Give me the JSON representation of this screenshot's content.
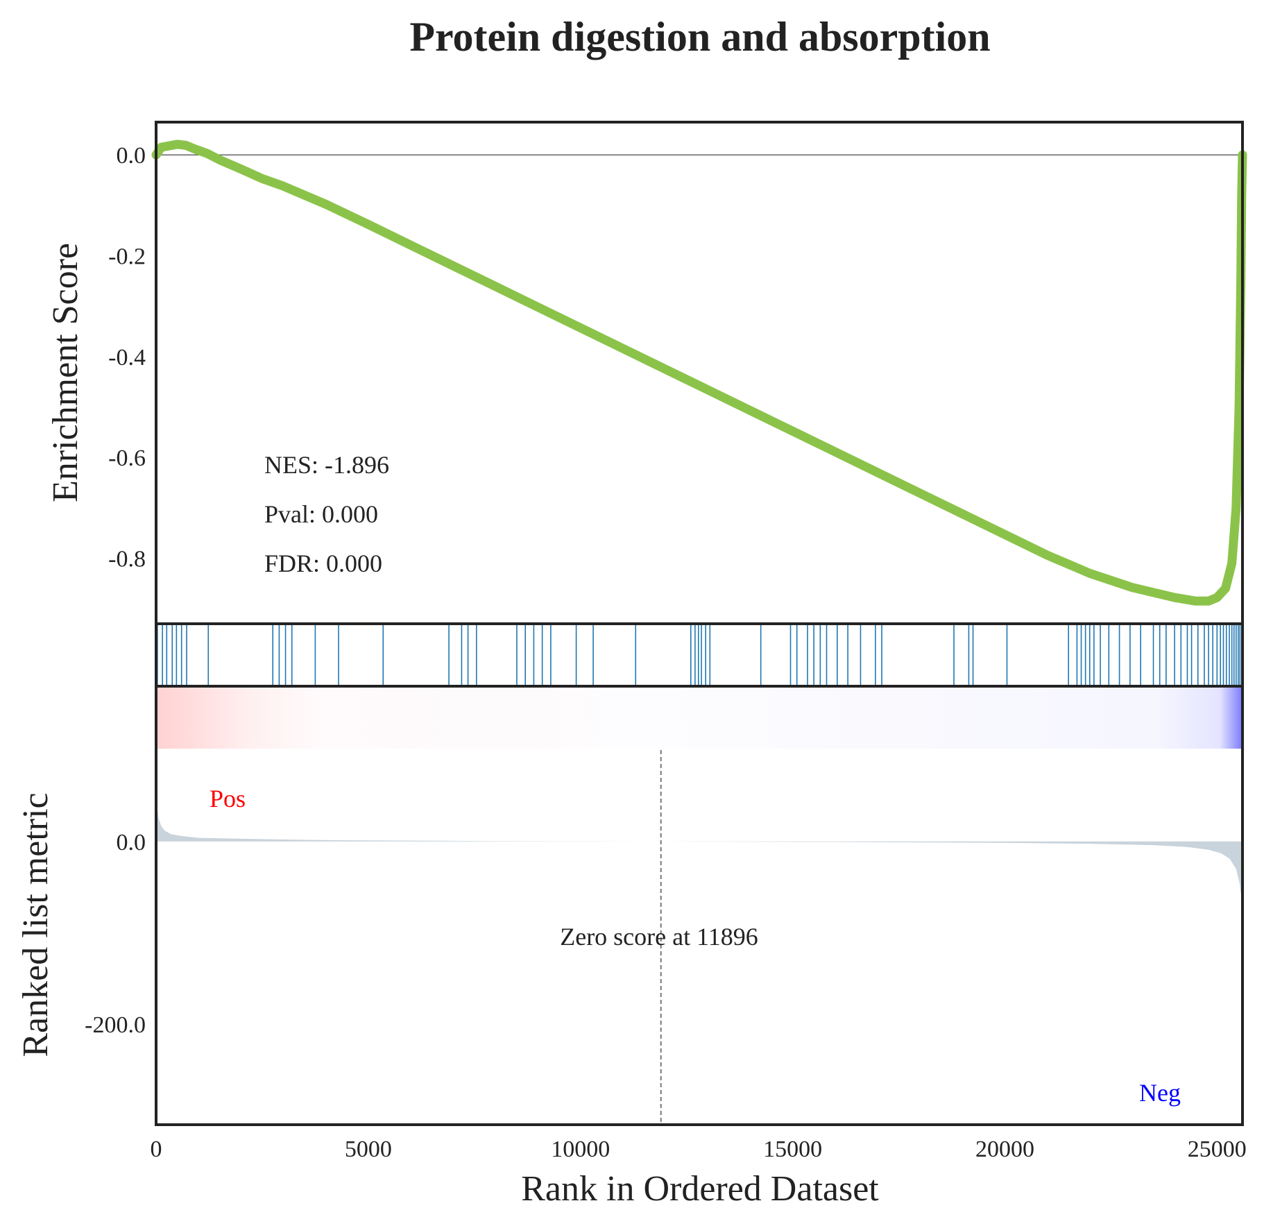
{
  "chart_data": {
    "type": "line",
    "title": "Protein digestion and absorption",
    "xlabel": "Rank in Ordered Dataset",
    "xlim": [
      0,
      25600
    ],
    "xticks": [
      "0",
      "5000",
      "10000",
      "15000",
      "20000",
      "25000"
    ],
    "xtick_values": [
      0,
      5000,
      10000,
      15000,
      20000,
      25000
    ],
    "es_panel": {
      "ylabel": "Enrichment Score",
      "ylim": [
        -0.93,
        0.065
      ],
      "yticks": [
        "0.0",
        "-0.2",
        "-0.4",
        "-0.6",
        "-0.8"
      ],
      "ytick_values": [
        0,
        -0.2,
        -0.4,
        -0.6,
        -0.8
      ],
      "line_color": "#8bc34a",
      "es_curve": {
        "x": [
          0,
          120,
          300,
          500,
          700,
          900,
          1200,
          1500,
          2000,
          2500,
          3000,
          3500,
          4000,
          5000,
          6000,
          7000,
          8000,
          9000,
          10000,
          11000,
          12000,
          13000,
          14000,
          15000,
          16000,
          17000,
          18000,
          19000,
          20000,
          21000,
          22000,
          23000,
          24000,
          24500,
          24800,
          25000,
          25200,
          25350,
          25450,
          25520,
          25560,
          25580,
          25600
        ],
        "y": [
          0.0,
          0.015,
          0.018,
          0.021,
          0.019,
          0.012,
          0.003,
          -0.01,
          -0.028,
          -0.047,
          -0.062,
          -0.08,
          -0.098,
          -0.138,
          -0.179,
          -0.22,
          -0.261,
          -0.302,
          -0.343,
          -0.384,
          -0.425,
          -0.466,
          -0.507,
          -0.548,
          -0.589,
          -0.63,
          -0.671,
          -0.712,
          -0.753,
          -0.794,
          -0.83,
          -0.858,
          -0.878,
          -0.885,
          -0.885,
          -0.878,
          -0.86,
          -0.81,
          -0.7,
          -0.5,
          -0.25,
          -0.08,
          0.0
        ]
      },
      "annotations": {
        "nes": "NES: -1.896",
        "pval": "Pval: 0.000",
        "fdr": "FDR: 0.000"
      }
    },
    "hits_panel": {
      "line_color": "#1f77b4",
      "hit_ranks": [
        30,
        150,
        250,
        380,
        480,
        600,
        720,
        1230,
        2750,
        2900,
        3050,
        3200,
        3750,
        4300,
        5350,
        6900,
        7200,
        7350,
        7550,
        8500,
        8700,
        8900,
        9100,
        9300,
        9900,
        10300,
        11300,
        12600,
        12700,
        12780,
        12850,
        12950,
        13050,
        14250,
        14950,
        15100,
        15350,
        15500,
        15650,
        15800,
        16050,
        16300,
        16600,
        16950,
        17100,
        18800,
        19150,
        19250,
        20050,
        21500,
        21700,
        21800,
        21900,
        22000,
        22100,
        22250,
        22450,
        22700,
        22950,
        23200,
        23500,
        23650,
        23800,
        24000,
        24150,
        24300,
        24400,
        24550,
        24700,
        24800,
        24900,
        25000,
        25080,
        25150,
        25220,
        25290,
        25350,
        25400,
        25450,
        25500,
        25540,
        25580
      ]
    },
    "ranked_panel": {
      "ylabel": "Ranked list metric",
      "ylim": [
        -310,
        170
      ],
      "yticks": [
        "0.0",
        "-200.0"
      ],
      "ytick_values": [
        0,
        -200
      ],
      "fill_color": "#c9d3db",
      "x": [
        0,
        20,
        60,
        120,
        200,
        350,
        600,
        1000,
        2000,
        4000,
        8000,
        11896,
        16000,
        20000,
        22000,
        23500,
        24300,
        24800,
        25100,
        25300,
        25450,
        25530,
        25570,
        25600
      ],
      "values": [
        52,
        38,
        25,
        17,
        12,
        8,
        6,
        4,
        3,
        1.5,
        0.5,
        0,
        -0.5,
        -1.5,
        -2.5,
        -4,
        -6,
        -9,
        -13,
        -19,
        -30,
        -45,
        -60,
        -100
      ],
      "zero_cross_rank": 11896,
      "zero_label": "Zero score at 11896",
      "pos_label": "Pos",
      "neg_label": "Neg",
      "pos_color": "#ff0000",
      "neg_color": "#0000ff"
    },
    "colorbar": {
      "stops": [
        {
          "x": 0,
          "color": "#ffd2d2"
        },
        {
          "x": 2200,
          "color": "#fff0f0"
        },
        {
          "x": 3700,
          "color": "#fffafb"
        },
        {
          "x": 11896,
          "color": "#fdfcfe"
        },
        {
          "x": 23600,
          "color": "#f6f6ff"
        },
        {
          "x": 25100,
          "color": "#e4e4ff"
        },
        {
          "x": 25600,
          "color": "#8080ff"
        }
      ]
    },
    "grid": false,
    "legend": "none"
  }
}
